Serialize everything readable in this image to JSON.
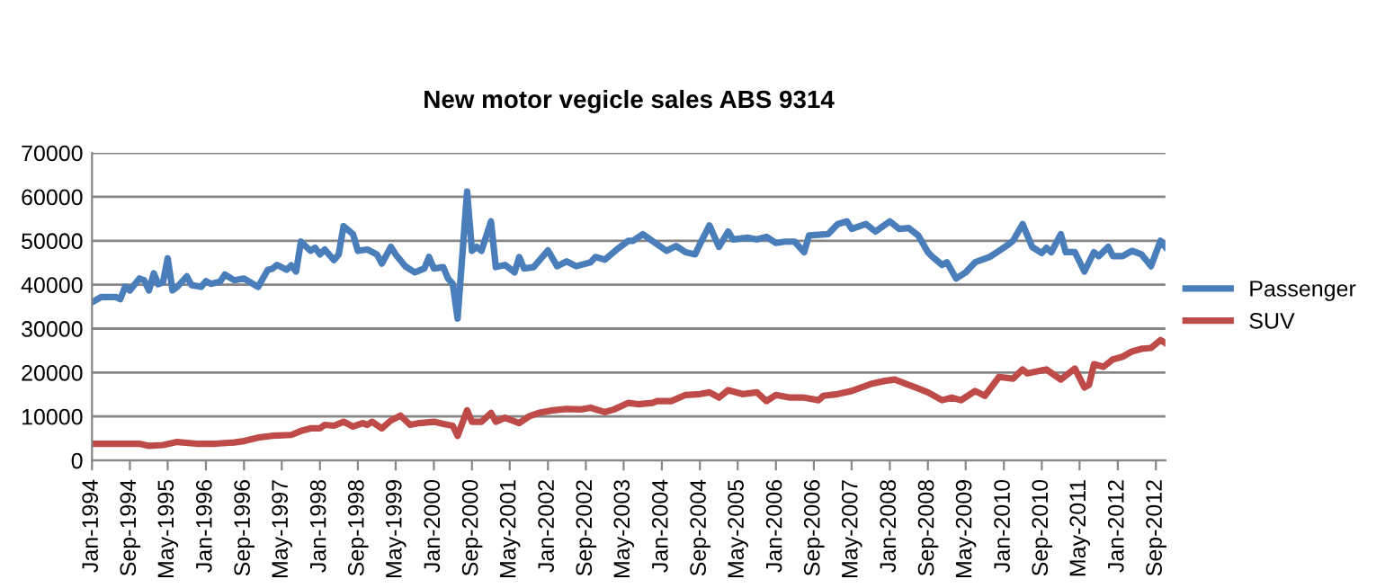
{
  "chart_data": {
    "type": "line",
    "title": "New motor vegicle sales ABS 9314",
    "xlim": [
      "1994-01",
      "2012-11"
    ],
    "ylim": [
      0,
      70000
    ],
    "yticks": [
      0,
      10000,
      20000,
      30000,
      40000,
      50000,
      60000,
      70000
    ],
    "xticks": [
      {
        "value": "1994-01",
        "label": "Jan-1994"
      },
      {
        "value": "1994-09",
        "label": "Sep-1994"
      },
      {
        "value": "1995-05",
        "label": "May-1995"
      },
      {
        "value": "1996-01",
        "label": "Jan-1996"
      },
      {
        "value": "1996-09",
        "label": "Sep-1996"
      },
      {
        "value": "1997-05",
        "label": "May-1997"
      },
      {
        "value": "1998-01",
        "label": "Jan-1998"
      },
      {
        "value": "1998-09",
        "label": "Sep-1998"
      },
      {
        "value": "1999-05",
        "label": "May-1999"
      },
      {
        "value": "2000-01",
        "label": "Jan-2000"
      },
      {
        "value": "2000-09",
        "label": "Sep-2000"
      },
      {
        "value": "2001-05",
        "label": "May-2001"
      },
      {
        "value": "2002-01",
        "label": "Jan-2002"
      },
      {
        "value": "2002-09",
        "label": "Sep-2002"
      },
      {
        "value": "2003-05",
        "label": "May-2003"
      },
      {
        "value": "2004-01",
        "label": "Jan-2004"
      },
      {
        "value": "2004-09",
        "label": "Sep-2004"
      },
      {
        "value": "2005-05",
        "label": "May-2005"
      },
      {
        "value": "2006-01",
        "label": "Jan-2006"
      },
      {
        "value": "2006-09",
        "label": "Sep-2006"
      },
      {
        "value": "2007-05",
        "label": "May-2007"
      },
      {
        "value": "2008-01",
        "label": "Jan-2008"
      },
      {
        "value": "2008-09",
        "label": "Sep-2008"
      },
      {
        "value": "2009-05",
        "label": "May-2009"
      },
      {
        "value": "2010-01",
        "label": "Jan-2010"
      },
      {
        "value": "2010-09",
        "label": "Sep-2010"
      },
      {
        "value": "2011-05",
        "label": "May-2011"
      },
      {
        "value": "2012-01",
        "label": "Jan-2012"
      },
      {
        "value": "2012-09",
        "label": "Sep-2012"
      }
    ],
    "grid": "y",
    "legend": "right",
    "marker": "none",
    "line_style": "solid",
    "series": [
      {
        "name": "Passenger",
        "color": "#4a7ebb",
        "x": [
          "1994-01",
          "1994-03",
          "1994-06",
          "1994-07",
          "1994-08",
          "1994-09",
          "1994-11",
          "1994-12",
          "1995-01",
          "1995-02",
          "1995-03",
          "1995-04",
          "1995-05",
          "1995-06",
          "1995-07",
          "1995-09",
          "1995-10",
          "1995-12",
          "1996-01",
          "1996-02",
          "1996-04",
          "1996-05",
          "1996-07",
          "1996-09",
          "1996-11",
          "1996-12",
          "1997-02",
          "1997-03",
          "1997-04",
          "1997-06",
          "1997-07",
          "1997-08",
          "1997-09",
          "1997-11",
          "1997-12",
          "1998-01",
          "1998-02",
          "1998-04",
          "1998-05",
          "1998-06",
          "1998-08",
          "1998-09",
          "1998-11",
          "1999-01",
          "1999-02",
          "1999-04",
          "1999-05",
          "1999-07",
          "1999-09",
          "1999-11",
          "1999-12",
          "2000-01",
          "2000-03",
          "2000-04",
          "2000-05",
          "2000-06",
          "2000-08",
          "2000-09",
          "2000-10",
          "2000-11",
          "2001-01",
          "2001-02",
          "2001-04",
          "2001-06",
          "2001-07",
          "2001-08",
          "2001-10",
          "2002-01",
          "2002-03",
          "2002-05",
          "2002-07",
          "2002-10",
          "2002-11",
          "2003-01",
          "2003-04",
          "2003-06",
          "2003-07",
          "2003-09",
          "2003-12",
          "2004-02",
          "2004-04",
          "2004-06",
          "2004-08",
          "2004-09",
          "2004-11",
          "2005-01",
          "2005-03",
          "2005-04",
          "2005-07",
          "2005-09",
          "2005-11",
          "2006-01",
          "2006-03",
          "2006-05",
          "2006-07",
          "2006-08",
          "2006-12",
          "2007-02",
          "2007-04",
          "2007-05",
          "2007-08",
          "2007-10",
          "2008-01",
          "2008-03",
          "2008-05",
          "2008-07",
          "2008-09",
          "2008-10",
          "2008-12",
          "2009-01",
          "2009-03",
          "2009-05",
          "2009-07",
          "2009-10",
          "2009-12",
          "2010-02",
          "2010-03",
          "2010-05",
          "2010-07",
          "2010-09",
          "2010-10",
          "2010-11",
          "2011-01",
          "2011-02",
          "2011-04",
          "2011-06",
          "2011-08",
          "2011-09",
          "2011-11",
          "2011-12",
          "2012-02",
          "2012-04",
          "2012-06",
          "2012-08",
          "2012-10",
          "2012-11"
        ],
        "values": [
          36000,
          37200,
          37200,
          36700,
          39500,
          38700,
          41400,
          41000,
          38700,
          42600,
          40100,
          40500,
          46000,
          38700,
          39500,
          41900,
          39900,
          39500,
          40800,
          40200,
          40700,
          42300,
          41000,
          41400,
          40100,
          39500,
          43400,
          43600,
          44500,
          43400,
          44400,
          43000,
          49800,
          47700,
          48400,
          46900,
          48000,
          45600,
          46900,
          53300,
          51500,
          47700,
          48000,
          46900,
          44800,
          48600,
          46900,
          44200,
          42800,
          43700,
          46300,
          43700,
          44000,
          41400,
          40200,
          32300,
          61200,
          47700,
          48600,
          47700,
          54400,
          44000,
          44500,
          42800,
          46300,
          43700,
          44000,
          47800,
          44200,
          45300,
          44200,
          45100,
          46300,
          45700,
          48400,
          50000,
          50000,
          51500,
          49200,
          47700,
          48800,
          47400,
          46900,
          49200,
          53500,
          48600,
          52100,
          50300,
          50700,
          50300,
          50900,
          49500,
          49800,
          49800,
          47400,
          51200,
          51500,
          53800,
          54400,
          52700,
          53800,
          52100,
          54400,
          52700,
          52900,
          51200,
          47400,
          46300,
          44500,
          45100,
          41400,
          42800,
          45100,
          46300,
          47700,
          49200,
          50000,
          53800,
          48600,
          47200,
          48400,
          47400,
          51500,
          47400,
          47400,
          43000,
          47400,
          46500,
          48600,
          46500,
          46500,
          47700,
          46900,
          44200,
          50000,
          48600
        ]
      },
      {
        "name": "SUV",
        "color": "#be4b48",
        "x": [
          "1994-01",
          "1994-11",
          "1995-01",
          "1995-04",
          "1995-07",
          "1995-11",
          "1996-03",
          "1996-07",
          "1996-09",
          "1996-12",
          "1997-03",
          "1997-07",
          "1997-09",
          "1997-11",
          "1998-01",
          "1998-02",
          "1998-04",
          "1998-06",
          "1998-08",
          "1998-10",
          "1998-11",
          "1998-12",
          "1999-02",
          "1999-04",
          "1999-06",
          "1999-08",
          "1999-10",
          "2000-01",
          "2000-03",
          "2000-05",
          "2000-06",
          "2000-08",
          "2000-09",
          "2000-11",
          "2001-01",
          "2001-02",
          "2001-04",
          "2001-07",
          "2001-09",
          "2001-11",
          "2002-02",
          "2002-05",
          "2002-08",
          "2002-10",
          "2003-01",
          "2003-03",
          "2003-06",
          "2003-08",
          "2003-11",
          "2003-12",
          "2004-03",
          "2004-06",
          "2004-09",
          "2004-11",
          "2005-01",
          "2005-03",
          "2005-06",
          "2005-09",
          "2005-11",
          "2006-01",
          "2006-04",
          "2006-07",
          "2006-10",
          "2006-11",
          "2007-02",
          "2007-05",
          "2007-09",
          "2007-12",
          "2008-02",
          "2008-05",
          "2008-09",
          "2008-12",
          "2009-02",
          "2009-04",
          "2009-07",
          "2009-09",
          "2009-12",
          "2010-03",
          "2010-05",
          "2010-06",
          "2010-09",
          "2010-10",
          "2011-01",
          "2011-04",
          "2011-06",
          "2011-07",
          "2011-08",
          "2011-10",
          "2011-12",
          "2012-02",
          "2012-04",
          "2012-06",
          "2012-08",
          "2012-10",
          "2012-11"
        ],
        "values": [
          3800,
          3800,
          3300,
          3500,
          4200,
          3800,
          3800,
          4100,
          4400,
          5200,
          5600,
          5800,
          6700,
          7300,
          7300,
          8100,
          7900,
          8800,
          7700,
          8500,
          8100,
          8800,
          7300,
          9100,
          10200,
          8100,
          8500,
          8800,
          8300,
          7900,
          5600,
          11400,
          8800,
          8800,
          10800,
          8800,
          9700,
          8500,
          10000,
          10800,
          11400,
          11700,
          11600,
          12000,
          11000,
          11600,
          13100,
          12800,
          13100,
          13500,
          13500,
          14900,
          15100,
          15500,
          14300,
          16000,
          15100,
          15500,
          13500,
          14900,
          14300,
          14300,
          13700,
          14700,
          15100,
          15800,
          17400,
          18100,
          18400,
          17200,
          15500,
          13700,
          14300,
          13700,
          15800,
          14700,
          19000,
          18600,
          20700,
          19800,
          20500,
          20700,
          18400,
          20900,
          16600,
          17200,
          21900,
          21300,
          23000,
          23600,
          24800,
          25400,
          25600,
          27400,
          26700
        ]
      }
    ]
  }
}
